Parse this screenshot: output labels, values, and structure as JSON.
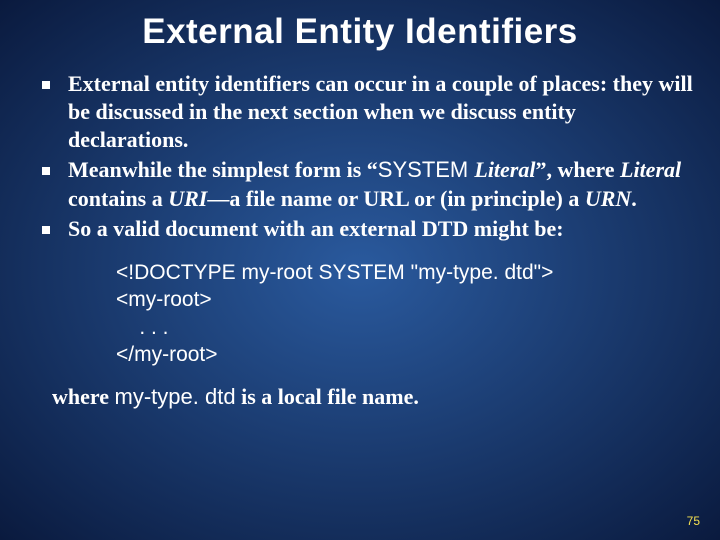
{
  "background_gradient": {
    "center": "#2a5a9e",
    "mid": "#1a3a6e",
    "edge": "#0a1a3e"
  },
  "text_color": "#ffffff",
  "page_number_color": "#f5e050",
  "title": "External Entity Identifiers",
  "title_fontsize": 35,
  "body_fontsize": 22,
  "code_fontsize": 21,
  "bullets": [
    {
      "pre": "External entity identifiers can occur in a couple of places: they will be discussed in the next section when we discuss entity declarations."
    },
    {
      "prefix": "Meanwhile the simplest form is “",
      "t1": "SYSTEM ",
      "t2": "Literal",
      "mid1": "”, where ",
      "t3": "Literal",
      "mid2": " contains a ",
      "t4": "URI",
      "mid3": "—a file name or URL or (in principle) a ",
      "t5": "URN",
      "suffix": "."
    },
    {
      "pre": "So a valid document with an external DTD might be:"
    }
  ],
  "code": {
    "l1": "<!DOCTYPE my-root SYSTEM \"my-type. dtd\">",
    "l2": "<my-root>",
    "l3": "    . . .",
    "l4": "</my-root>"
  },
  "closing": {
    "p1": "where ",
    "file": "my-type. dtd",
    "p2": " is a local file name."
  },
  "page_number": "75"
}
